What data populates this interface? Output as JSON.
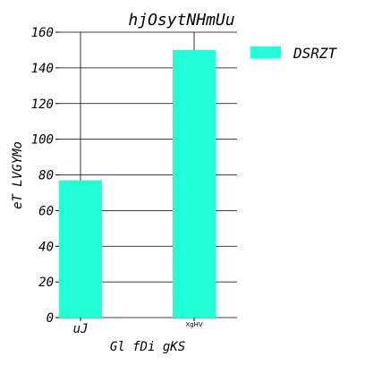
{
  "chart_data": {
    "type": "bar",
    "title": "hjOsytNHmUu",
    "xlabel": "Gl fDi  gKS",
    "ylabel": "eT LVGYMo",
    "categories": [
      "uJ",
      "XgHV"
    ],
    "series": [
      {
        "name": "DSRZT",
        "values": [
          77,
          150
        ],
        "color": "#22ffd6"
      }
    ],
    "ylim": [
      0,
      160
    ],
    "yticks": [
      0,
      20,
      40,
      60,
      80,
      100,
      120,
      140,
      160
    ],
    "grid": true,
    "legend_position": "top-right"
  }
}
